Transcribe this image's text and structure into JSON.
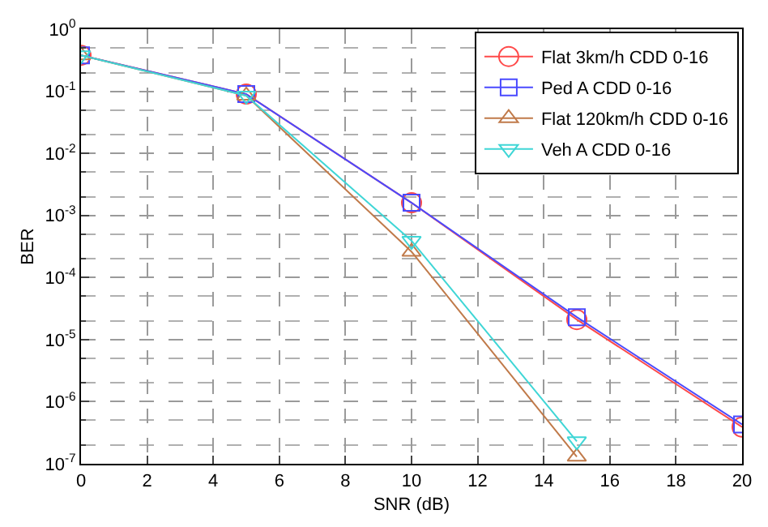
{
  "chart_data": {
    "type": "line",
    "xlabel": "SNR (dB)",
    "ylabel": "BER",
    "log": "y",
    "grid": true,
    "legend": "top right",
    "line_style": "solid",
    "x": [
      0,
      5,
      10,
      15,
      20
    ],
    "xlim": [
      0,
      20
    ],
    "xticks": [
      0,
      2,
      4,
      6,
      8,
      10,
      12,
      14,
      16,
      18,
      20
    ],
    "ylim": [
      1e-07,
      1
    ],
    "yticks": [
      {
        "value": 1e-07,
        "label": "10$^{-7}$"
      },
      {
        "value": 1e-06,
        "label": "10$^{-6}$"
      },
      {
        "value": 1e-05,
        "label": "10$^{-5}$"
      },
      {
        "value": 0.0001,
        "label": "10$^{-4}$"
      },
      {
        "value": 0.001,
        "label": "10$^{-3}$"
      },
      {
        "value": 0.01,
        "label": "10$^{-2}$"
      },
      {
        "value": 0.1,
        "label": "10$^{-1}$"
      },
      {
        "value": 1,
        "label": "10$^{0}$"
      }
    ],
    "series": [
      {
        "name": "Flat 3km/h CDD 0-16",
        "color": "#ff4a4a",
        "marker": "circle",
        "values": [
          0.38,
          0.09,
          0.0016,
          2.1e-05,
          3.9e-07
        ]
      },
      {
        "name": "Ped A CDD 0-16",
        "color": "#4a4aff",
        "marker": "square",
        "values": [
          0.38,
          0.09,
          0.0016,
          2.3e-05,
          4.3e-07
        ]
      },
      {
        "name": "Flat 120km/h CDD 0-16",
        "color": "#c07a4a",
        "marker": "triangle",
        "values": [
          0.38,
          0.085,
          0.00026,
          1.3e-07,
          null
        ]
      },
      {
        "name": "Veh A CDD 0-16",
        "color": "#3fd6d6",
        "marker": "triangle-down",
        "values": [
          0.38,
          0.085,
          0.00039,
          2.3e-07,
          null
        ]
      }
    ]
  }
}
